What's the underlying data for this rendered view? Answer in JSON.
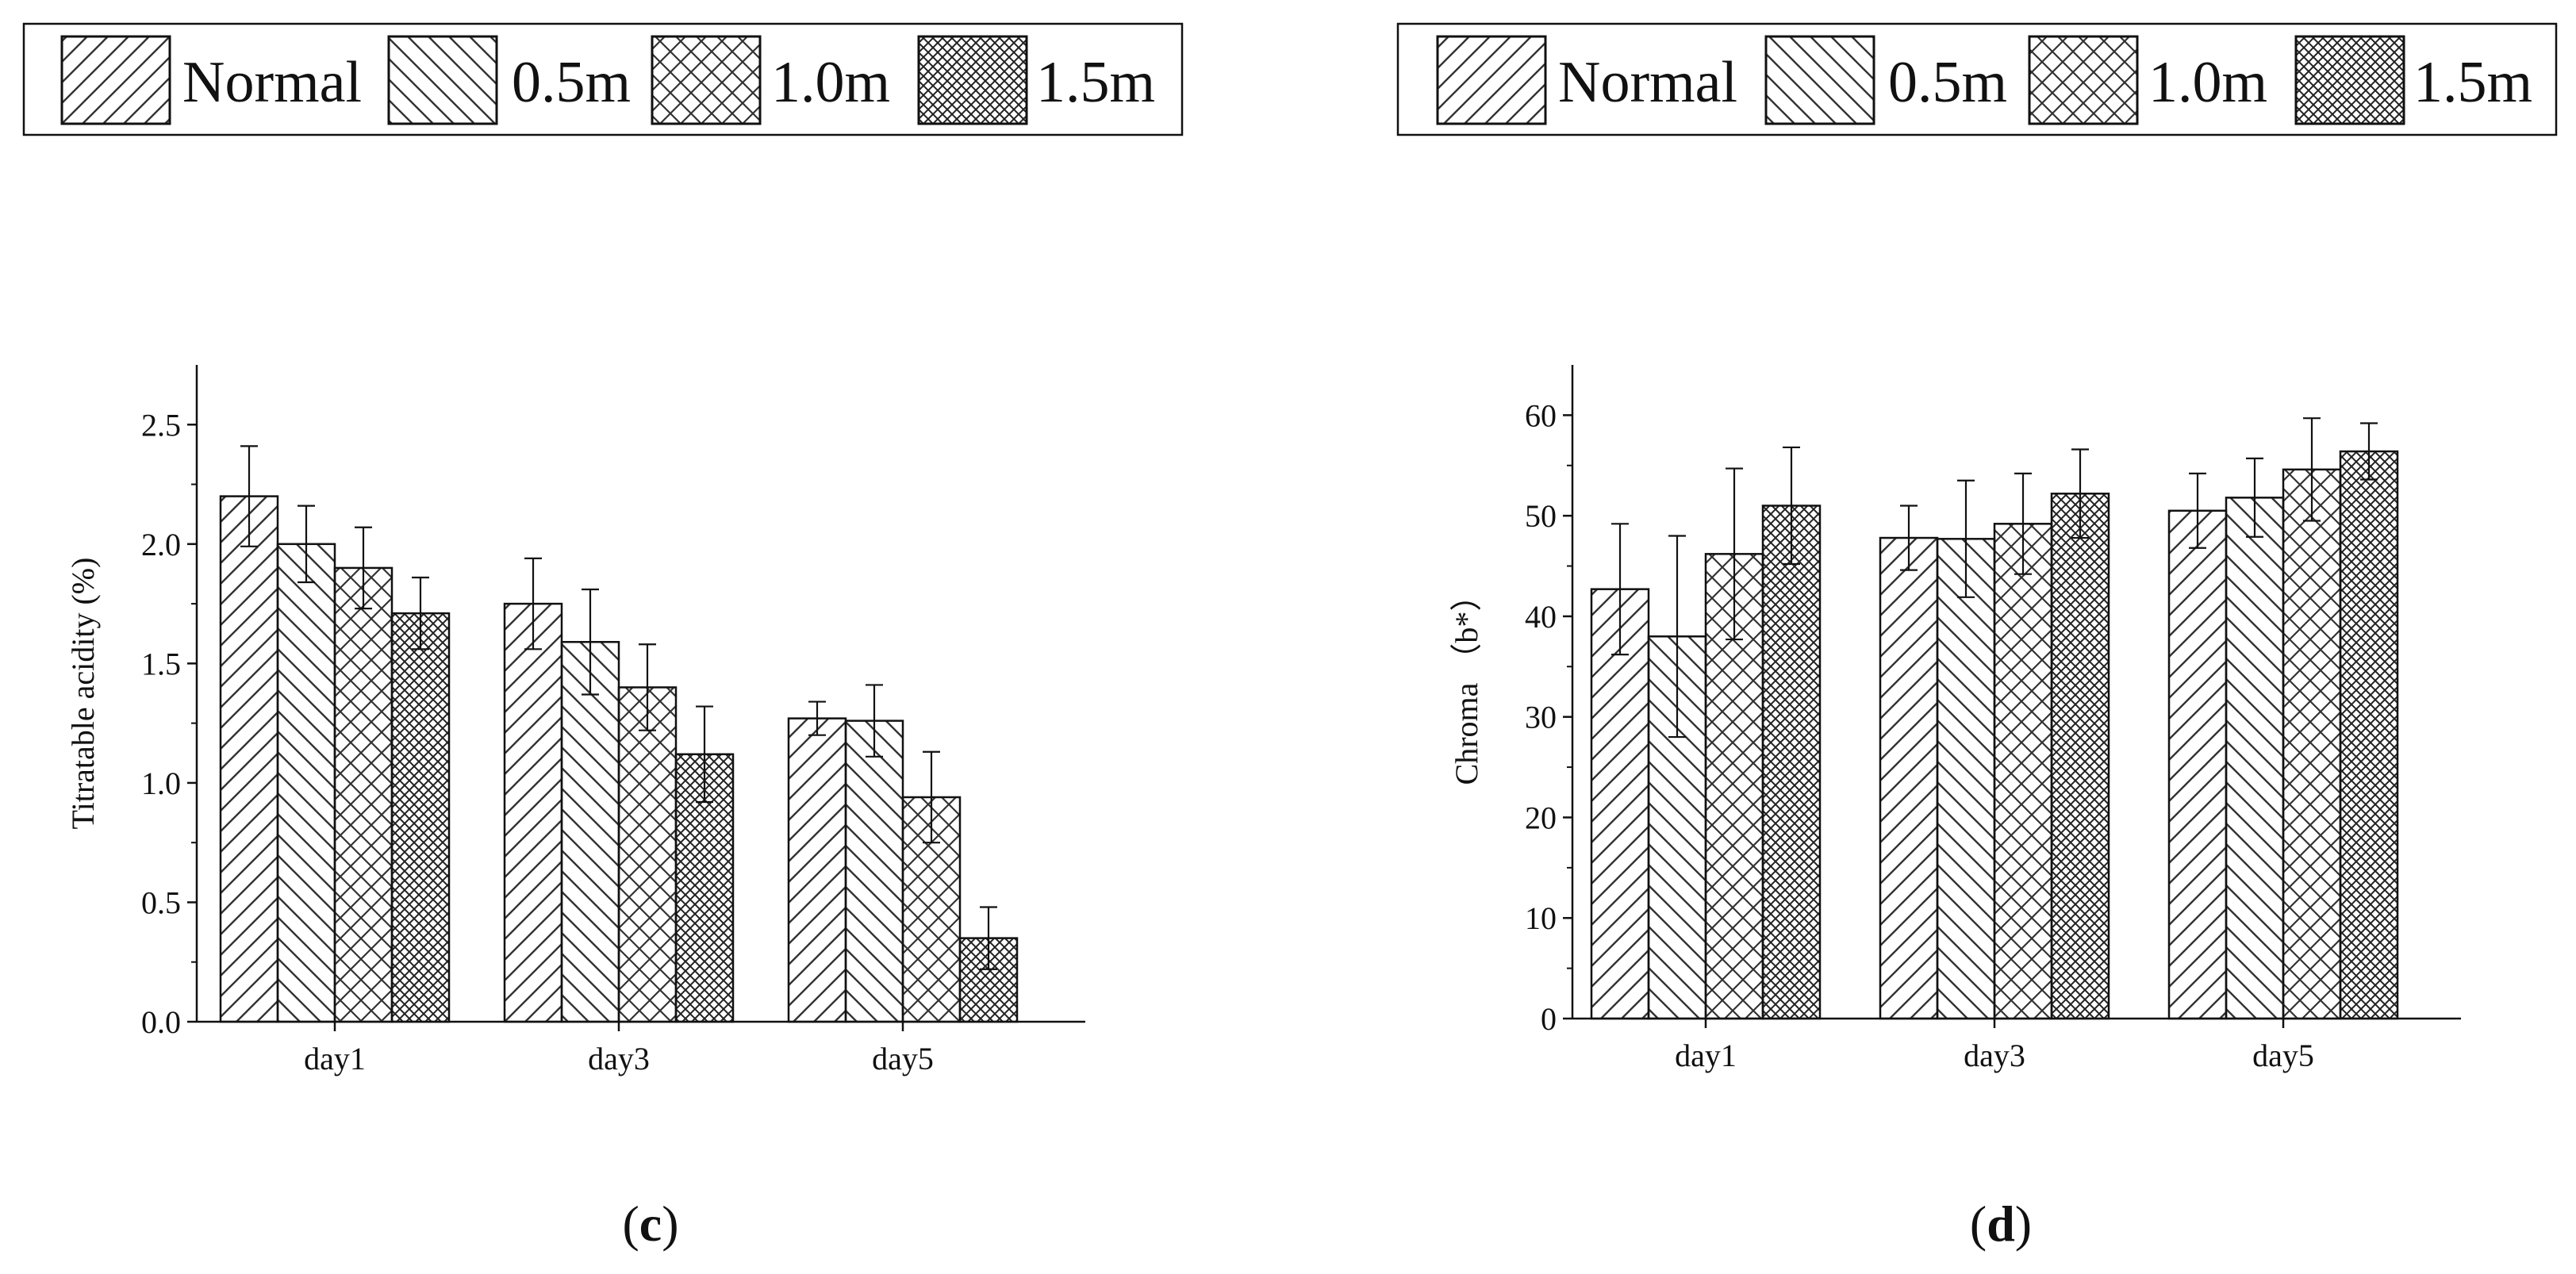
{
  "colors": {
    "ink": "#111111",
    "background": "#ffffff",
    "bar_fill": "#ffffff",
    "hatch": "#333333"
  },
  "legend": {
    "entries": [
      "Normal",
      "0.5m",
      "1.0m",
      "1.5m"
    ],
    "patterns": [
      "diagonal-forward",
      "diagonal-back",
      "cross-diagonal",
      "dense-cross-diagonal"
    ]
  },
  "chart_data": [
    {
      "type": "bar",
      "panel_label": {
        "prefix": "(",
        "letter": "c",
        "suffix": ")"
      },
      "title": "",
      "xlabel": "",
      "ylabel": "Titratable acidity (%)",
      "categories": [
        "day1",
        "day3",
        "day5"
      ],
      "ylim": [
        0,
        2.75
      ],
      "yticks": [
        0,
        0.5,
        1.0,
        1.5,
        2.0,
        2.5
      ],
      "ytick_labels": [
        "0.0",
        "0.5",
        "1.0",
        "1.5",
        "2.0",
        "2.5"
      ],
      "minor_ticks": true,
      "grid": false,
      "legend_position": "top",
      "series": [
        {
          "name": "Normal",
          "values": [
            2.2,
            1.75,
            1.27
          ],
          "errors": [
            0.21,
            0.19,
            0.07
          ]
        },
        {
          "name": "0.5m",
          "values": [
            2.0,
            1.59,
            1.26
          ],
          "errors": [
            0.16,
            0.22,
            0.15
          ]
        },
        {
          "name": "1.0m",
          "values": [
            1.9,
            1.4,
            0.94
          ],
          "errors": [
            0.17,
            0.18,
            0.19
          ]
        },
        {
          "name": "1.5m",
          "values": [
            1.71,
            1.12,
            0.35
          ],
          "errors": [
            0.15,
            0.2,
            0.13
          ]
        }
      ]
    },
    {
      "type": "bar",
      "panel_label": {
        "prefix": "(",
        "letter": "d",
        "suffix": ")"
      },
      "title": "",
      "xlabel": "",
      "ylabel": "Chroma （b*）",
      "categories": [
        "day1",
        "day3",
        "day5"
      ],
      "ylim": [
        0,
        65
      ],
      "yticks": [
        0,
        10,
        20,
        30,
        40,
        50,
        60
      ],
      "ytick_labels": [
        "0",
        "10",
        "20",
        "30",
        "40",
        "50",
        "60"
      ],
      "minor_ticks": true,
      "grid": false,
      "legend_position": "top",
      "series": [
        {
          "name": "Normal",
          "values": [
            42.7,
            47.8,
            50.5
          ],
          "errors": [
            6.5,
            3.2,
            3.7
          ]
        },
        {
          "name": "0.5m",
          "values": [
            38.0,
            47.7,
            51.8
          ],
          "errors": [
            10.0,
            5.8,
            3.9
          ]
        },
        {
          "name": "1.0m",
          "values": [
            46.2,
            49.2,
            54.6
          ],
          "errors": [
            8.5,
            5.0,
            5.1
          ]
        },
        {
          "name": "1.5m",
          "values": [
            51.0,
            52.2,
            56.4
          ],
          "errors": [
            5.8,
            4.4,
            2.8
          ]
        }
      ]
    }
  ]
}
